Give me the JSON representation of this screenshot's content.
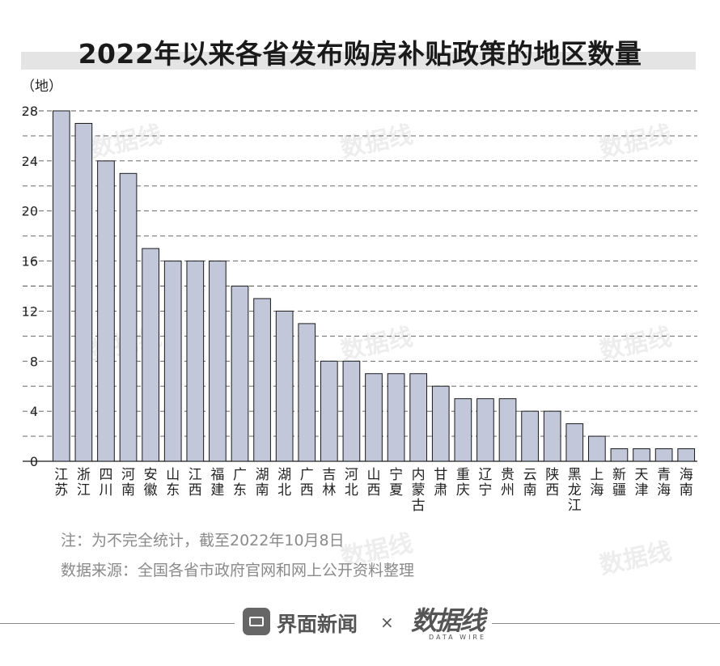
{
  "header": {
    "title": "2022年以来各省发布购房补贴政策的地区数量",
    "unit": "（地）"
  },
  "notes": {
    "note1": "注：为不完全统计，截至2022年10月8日",
    "note2": "数据来源：全国各省市政府官网和网上公开资料整理"
  },
  "footer": {
    "brand": "界面新闻",
    "separator": "×",
    "brand2": "数据线",
    "brand2_sub": "DATA WIRE"
  },
  "watermark": "数据线",
  "colors": {
    "bar_fill": "#c2c8da",
    "bar_stroke": "#1a1a1a",
    "grid": "#555555",
    "title_band": "#e4e4e4"
  },
  "chart_data": {
    "type": "bar",
    "title": "2022年以来各省发布购房补贴政策的地区数量",
    "ylabel": "（地）",
    "xlabel": "",
    "ylim": [
      0,
      28
    ],
    "yticks": [
      0,
      4,
      8,
      12,
      16,
      20,
      24,
      28
    ],
    "grid": true,
    "categories": [
      "江苏",
      "浙江",
      "四川",
      "河南",
      "安徽",
      "山东",
      "江西",
      "福建",
      "广东",
      "湖南",
      "湖北",
      "广西",
      "吉林",
      "河北",
      "山西",
      "宁夏",
      "内蒙古",
      "甘肃",
      "重庆",
      "辽宁",
      "贵州",
      "云南",
      "陕西",
      "黑龙江",
      "上海",
      "新疆",
      "天津",
      "青海",
      "海南"
    ],
    "values": [
      28,
      27,
      24,
      23,
      17,
      16,
      16,
      16,
      14,
      13,
      12,
      11,
      8,
      8,
      7,
      7,
      7,
      6,
      5,
      5,
      5,
      4,
      4,
      3,
      2,
      1,
      1,
      1,
      1
    ]
  }
}
